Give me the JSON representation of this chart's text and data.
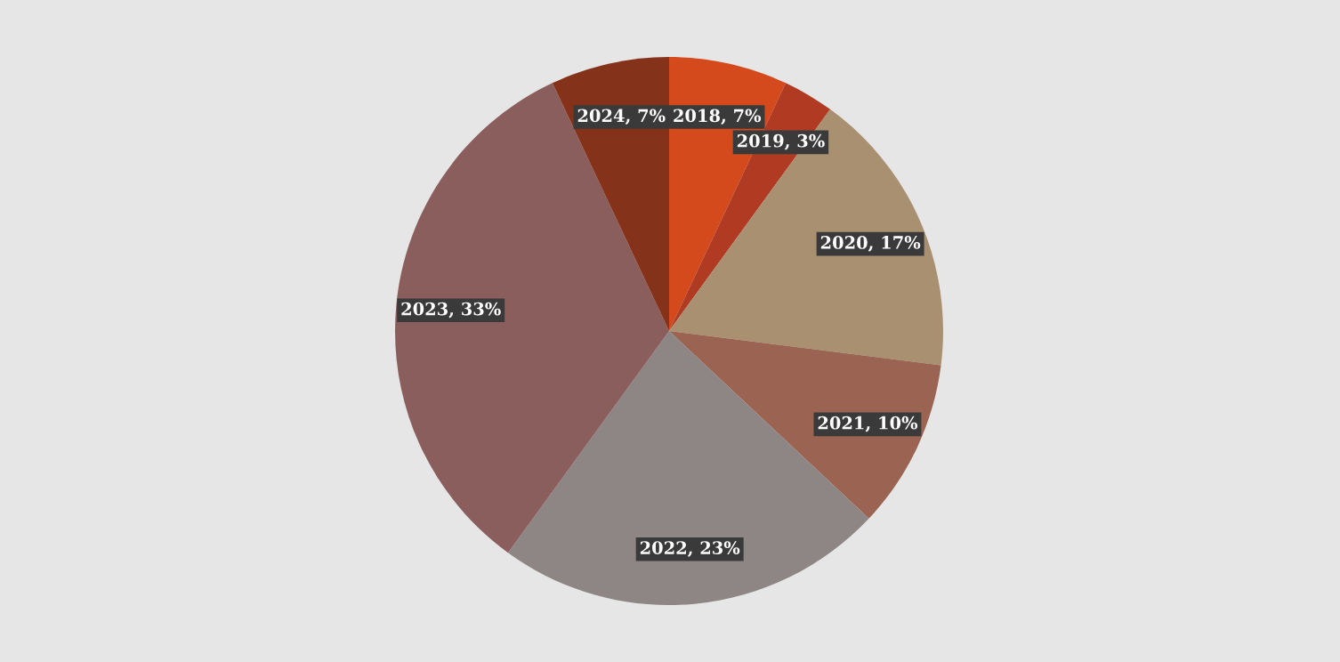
{
  "chart_data": {
    "type": "pie",
    "categories": [
      "2018",
      "2019",
      "2020",
      "2021",
      "2022",
      "2023",
      "2024"
    ],
    "values": [
      7,
      3,
      17,
      10,
      23,
      33,
      7
    ],
    "value_labels": [
      "7%",
      "3%",
      "17%",
      "10%",
      "23%",
      "33%",
      "7%"
    ],
    "colors": [
      "#d54a1c",
      "#b03a22",
      "#a89070",
      "#9b6452",
      "#8e8585",
      "#8a5e5c",
      "#85321a"
    ],
    "legend": false
  }
}
